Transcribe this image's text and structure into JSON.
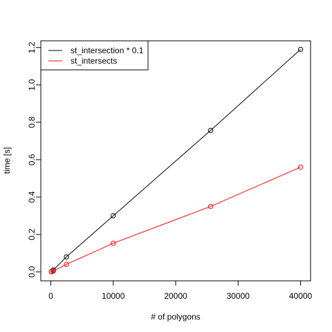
{
  "chart_data": {
    "type": "line",
    "title": "",
    "xlabel": "# of polygons",
    "ylabel": "time [s]",
    "xlim": [
      -1600,
      41600
    ],
    "ylim": [
      -0.048,
      1.236
    ],
    "xticks": [
      0,
      10000,
      20000,
      30000,
      40000
    ],
    "xtick_labels": [
      "0",
      "10000",
      "20000",
      "30000",
      "40000"
    ],
    "yticks": [
      0.0,
      0.2,
      0.4,
      0.6,
      0.8,
      1.0,
      1.2
    ],
    "ytick_labels": [
      "0.0",
      "0.2",
      "0.4",
      "0.6",
      "0.8",
      "1.0",
      "1.2"
    ],
    "grid": false,
    "legend_position": "top-left",
    "series": [
      {
        "name": "st_intersection * 0.1",
        "color": "#000000",
        "marker": "open-circle",
        "x": [
          100,
          400,
          2500,
          10000,
          25600,
          40000
        ],
        "y": [
          0.002,
          0.01,
          0.08,
          0.3,
          0.757,
          1.19
        ]
      },
      {
        "name": "st_intersects",
        "color": "#ff0000",
        "marker": "open-circle",
        "x": [
          100,
          400,
          2500,
          10000,
          25600,
          40000
        ],
        "y": [
          0.001,
          0.004,
          0.04,
          0.153,
          0.35,
          0.56
        ]
      }
    ]
  }
}
